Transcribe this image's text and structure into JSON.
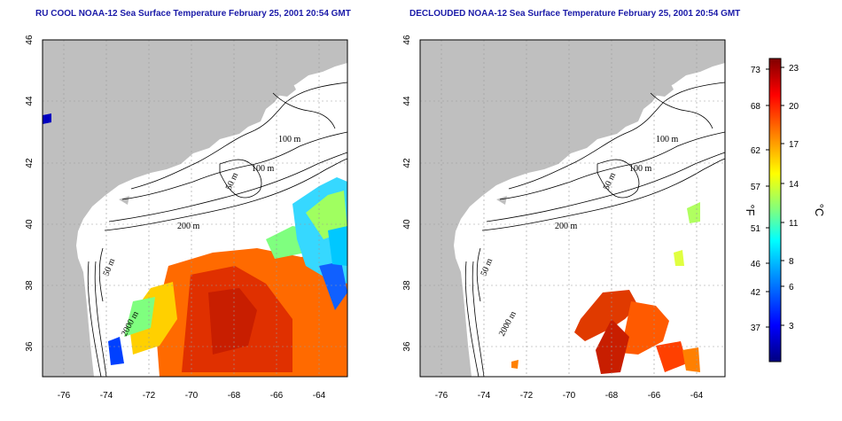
{
  "left_panel": {
    "title": "RU COOL NOAA-12 Sea Surface Temperature February 25, 2001 20:54 GMT"
  },
  "right_panel": {
    "title": "DECLOUDED NOAA-12 Sea Surface Temperature February 25, 2001 20:54 GMT"
  },
  "axes": {
    "lon_ticks": [
      "-76",
      "-74",
      "-72",
      "-70",
      "-68",
      "-66",
      "-64"
    ],
    "lat_ticks": [
      "46",
      "44",
      "42",
      "40",
      "38",
      "36"
    ],
    "lon_range": [
      -77.2,
      -62.8
    ],
    "lat_range": [
      35.0,
      46.0
    ],
    "grid": "dashed"
  },
  "contour_labels": [
    "100 m",
    "100 m",
    "50 m",
    "200 m",
    "50 m",
    "2000 m"
  ],
  "colorbar": {
    "unit_f": "°F",
    "unit_c": "°C",
    "f_ticks": [
      "73",
      "68",
      "62",
      "57",
      "51",
      "46",
      "42",
      "37"
    ],
    "c_ticks": [
      "23",
      "20",
      "17",
      "14",
      "11",
      "8",
      "6",
      "3"
    ],
    "colors": [
      "#000080",
      "#0000ff",
      "#00a0ff",
      "#00ffff",
      "#7fff7f",
      "#ffff00",
      "#ff8000",
      "#ff0000",
      "#800000"
    ]
  },
  "colors": {
    "land": "#bfbfbf",
    "title": "#1a1aa8"
  }
}
